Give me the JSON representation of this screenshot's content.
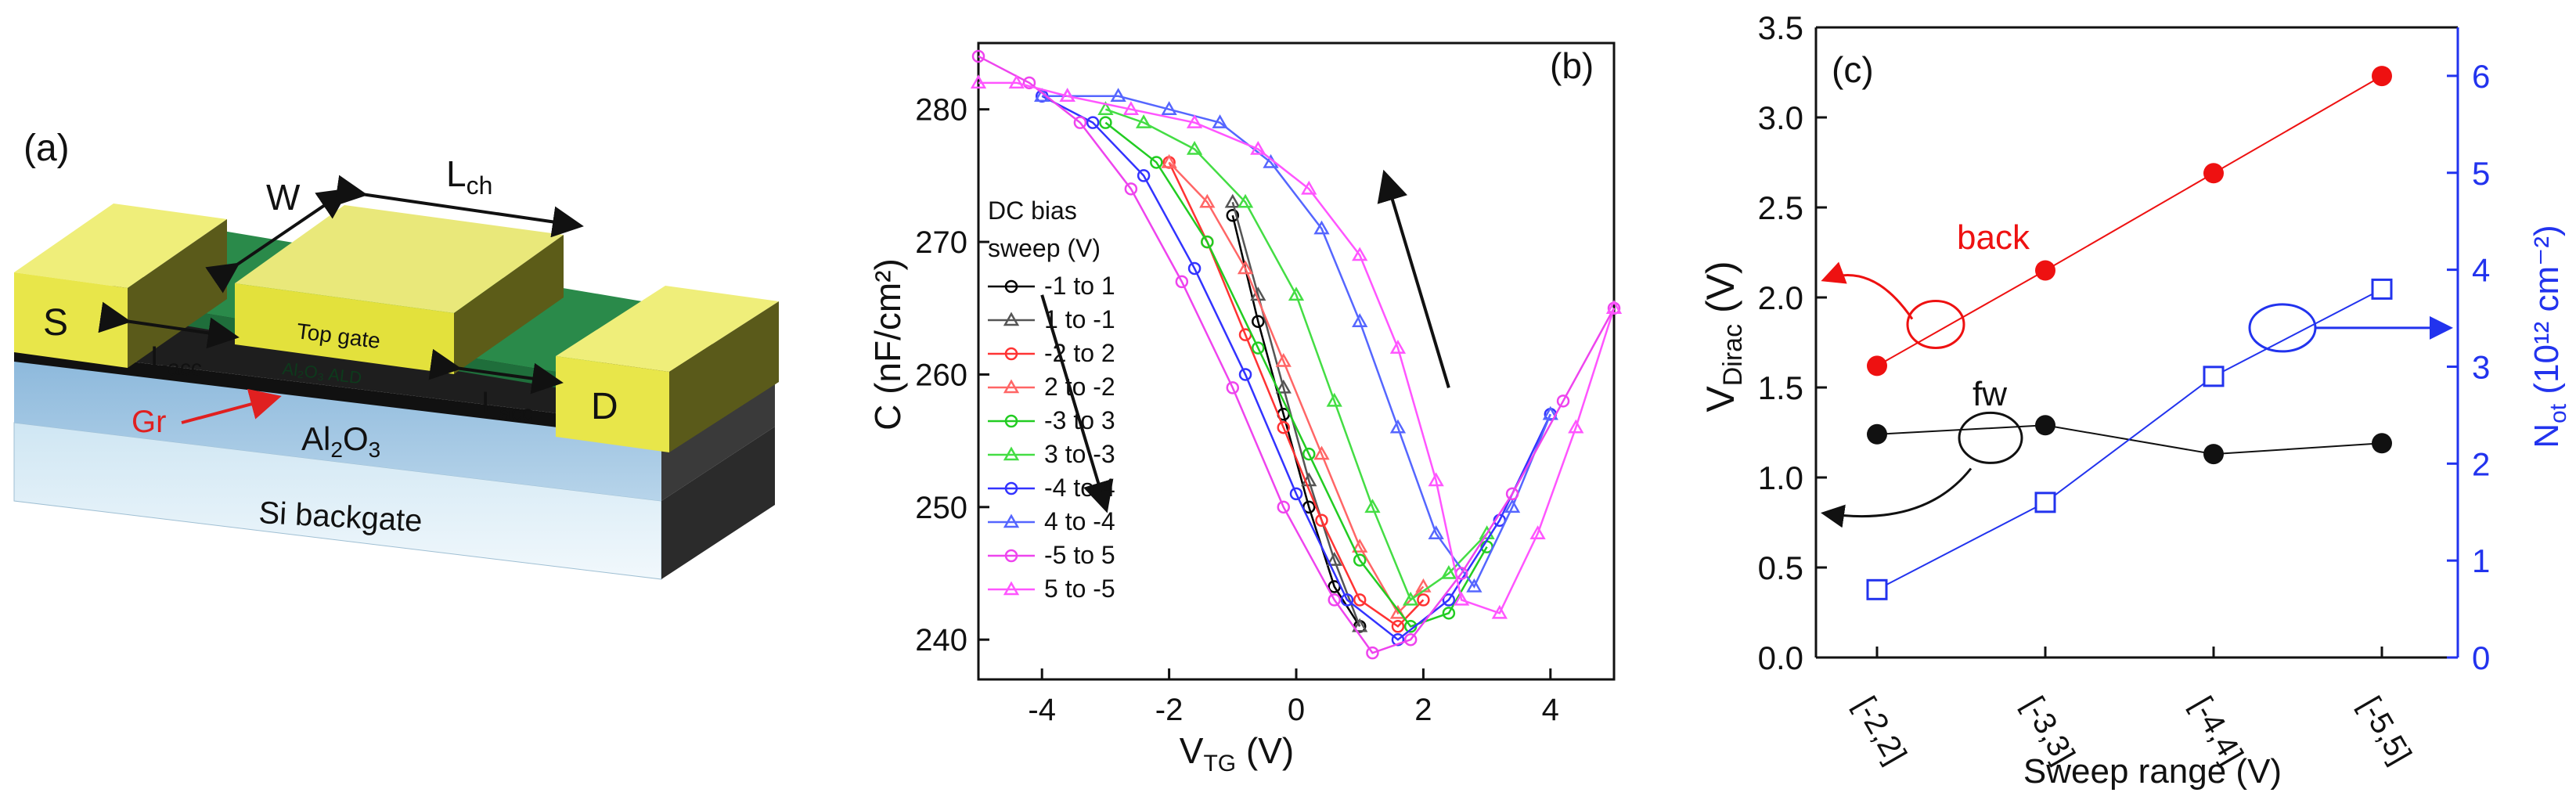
{
  "panel_a": {
    "label": "(a)",
    "source": "S",
    "drain": "D",
    "top_gate": "Top gate",
    "dielectric_ald": "Al₂O₃ ALD",
    "gr": "Gr",
    "al2o3": "Al₂O₃",
    "si_backgate": "Si backgate",
    "w": "W",
    "lch_main": "L",
    "lch_sub": "ch",
    "lacc_main": "L",
    "lacc_sub": "acc",
    "colors": {
      "contact": "#e8e64a",
      "topgate": "#e3e13c",
      "channel": "#2a8a4a",
      "al2o3": "#a9cbe4",
      "si": "#d9ecf6",
      "shadow": "#222222",
      "gr_arrow": "#e02020"
    }
  },
  "chart_data": [
    {
      "panel": "(b)",
      "type": "line",
      "xlabel_main": "V",
      "xlabel_sub": "TG",
      "xlabel_unit": " (V)",
      "ylabel": "C (nF/cm²)",
      "xlim": [
        -5,
        5
      ],
      "ylim": [
        237,
        285
      ],
      "xticks": [
        -4,
        -2,
        0,
        2,
        4
      ],
      "yticks": [
        240,
        250,
        260,
        270,
        280
      ],
      "legend_title": [
        "DC bias",
        "sweep (V)"
      ],
      "series": [
        {
          "name": "-1 to 1",
          "color": "#000000",
          "marker": "circle",
          "x": [
            -1,
            -0.6,
            -0.2,
            0.2,
            0.6,
            1.0
          ],
          "y": [
            272,
            264,
            257,
            250,
            244,
            241
          ]
        },
        {
          "name": "1 to -1",
          "color": "#555555",
          "marker": "triangle",
          "x": [
            1.0,
            0.6,
            0.2,
            -0.2,
            -0.6,
            -1.0
          ],
          "y": [
            241,
            246,
            252,
            259,
            266,
            273
          ]
        },
        {
          "name": "-2 to 2",
          "color": "#ff3333",
          "marker": "circle",
          "x": [
            -2,
            -1.4,
            -0.8,
            -0.2,
            0.4,
            1.0,
            1.6,
            2.0
          ],
          "y": [
            276,
            270,
            263,
            256,
            249,
            243,
            241,
            243
          ]
        },
        {
          "name": "2 to -2",
          "color": "#ff6666",
          "marker": "triangle",
          "x": [
            2.0,
            1.6,
            1.0,
            0.4,
            -0.2,
            -0.8,
            -1.4,
            -2.0
          ],
          "y": [
            244,
            242,
            247,
            254,
            261,
            268,
            273,
            276
          ]
        },
        {
          "name": "-3 to 3",
          "color": "#22cc22",
          "marker": "circle",
          "x": [
            -3,
            -2.2,
            -1.4,
            -0.6,
            0.2,
            1.0,
            1.8,
            2.4,
            3.0
          ],
          "y": [
            279,
            276,
            270,
            262,
            254,
            246,
            241,
            242,
            247
          ]
        },
        {
          "name": "3 to -3",
          "color": "#44dd44",
          "marker": "triangle",
          "x": [
            3.0,
            2.4,
            1.8,
            1.2,
            0.6,
            0.0,
            -0.8,
            -1.6,
            -2.4,
            -3.0
          ],
          "y": [
            248,
            245,
            243,
            250,
            258,
            266,
            273,
            277,
            279,
            280
          ]
        },
        {
          "name": "-4 to 4",
          "color": "#3333ff",
          "marker": "circle",
          "x": [
            -4,
            -3.2,
            -2.4,
            -1.6,
            -0.8,
            0.0,
            0.8,
            1.6,
            2.4,
            3.2,
            4.0
          ],
          "y": [
            281,
            279,
            275,
            268,
            260,
            251,
            243,
            240,
            243,
            249,
            257
          ]
        },
        {
          "name": "4 to -4",
          "color": "#5566ff",
          "marker": "triangle",
          "x": [
            4.0,
            3.4,
            2.8,
            2.2,
            1.6,
            1.0,
            0.4,
            -0.4,
            -1.2,
            -2.0,
            -2.8,
            -3.6,
            -4.0
          ],
          "y": [
            257,
            250,
            244,
            248,
            256,
            264,
            271,
            276,
            279,
            280,
            281,
            281,
            281
          ]
        },
        {
          "name": "-5 to 5",
          "color": "#ee44ee",
          "marker": "circle",
          "x": [
            -5,
            -4.2,
            -3.4,
            -2.6,
            -1.8,
            -1.0,
            -0.2,
            0.6,
            1.2,
            1.8,
            2.6,
            3.4,
            4.2,
            5.0
          ],
          "y": [
            284,
            282,
            279,
            274,
            267,
            259,
            250,
            243,
            239,
            240,
            245,
            251,
            258,
            265
          ]
        },
        {
          "name": "5 to -5",
          "color": "#ff55ff",
          "marker": "triangle",
          "x": [
            5.0,
            4.4,
            3.8,
            3.2,
            2.6,
            2.2,
            1.6,
            1.0,
            0.2,
            -0.6,
            -1.6,
            -2.6,
            -3.6,
            -4.4,
            -5.0
          ],
          "y": [
            265,
            256,
            248,
            242,
            243,
            252,
            262,
            269,
            274,
            277,
            279,
            280,
            281,
            282,
            282
          ]
        }
      ]
    },
    {
      "panel": "(c)",
      "type": "line",
      "xlabel": "Sweep range (V)",
      "ylabel_left_main": "V",
      "ylabel_left_sub": "Dirac",
      "ylabel_left_unit": " (V)",
      "ylabel_right_main": "N",
      "ylabel_right_sub": "ot",
      "ylabel_right_unit": " (10¹² cm⁻²)",
      "categories": [
        "[-2,2]",
        "[-3,3]",
        "[-4,4]",
        "[-5,5]"
      ],
      "ylim_left": [
        0.0,
        3.5
      ],
      "ylim_right": [
        0,
        6.5
      ],
      "yticks_left": [
        "0.0",
        "0.5",
        "1.0",
        "1.5",
        "2.0",
        "2.5",
        "3.0",
        "3.5"
      ],
      "yticks_right": [
        "0",
        "1",
        "2",
        "3",
        "4",
        "5",
        "6"
      ],
      "series": [
        {
          "name": "back",
          "axis": "left",
          "color": "#ee1111",
          "marker": "filled-circle",
          "values": [
            1.62,
            2.15,
            2.69,
            3.23
          ]
        },
        {
          "name": "fw",
          "axis": "left",
          "color": "#111111",
          "marker": "filled-circle",
          "values": [
            1.24,
            1.29,
            1.13,
            1.19
          ]
        },
        {
          "name": "N_ot",
          "axis": "right",
          "color": "#2233ee",
          "marker": "open-square",
          "values": [
            0.7,
            1.6,
            2.9,
            3.8
          ]
        }
      ],
      "annotations": {
        "back": "back",
        "fw": "fw"
      }
    }
  ]
}
